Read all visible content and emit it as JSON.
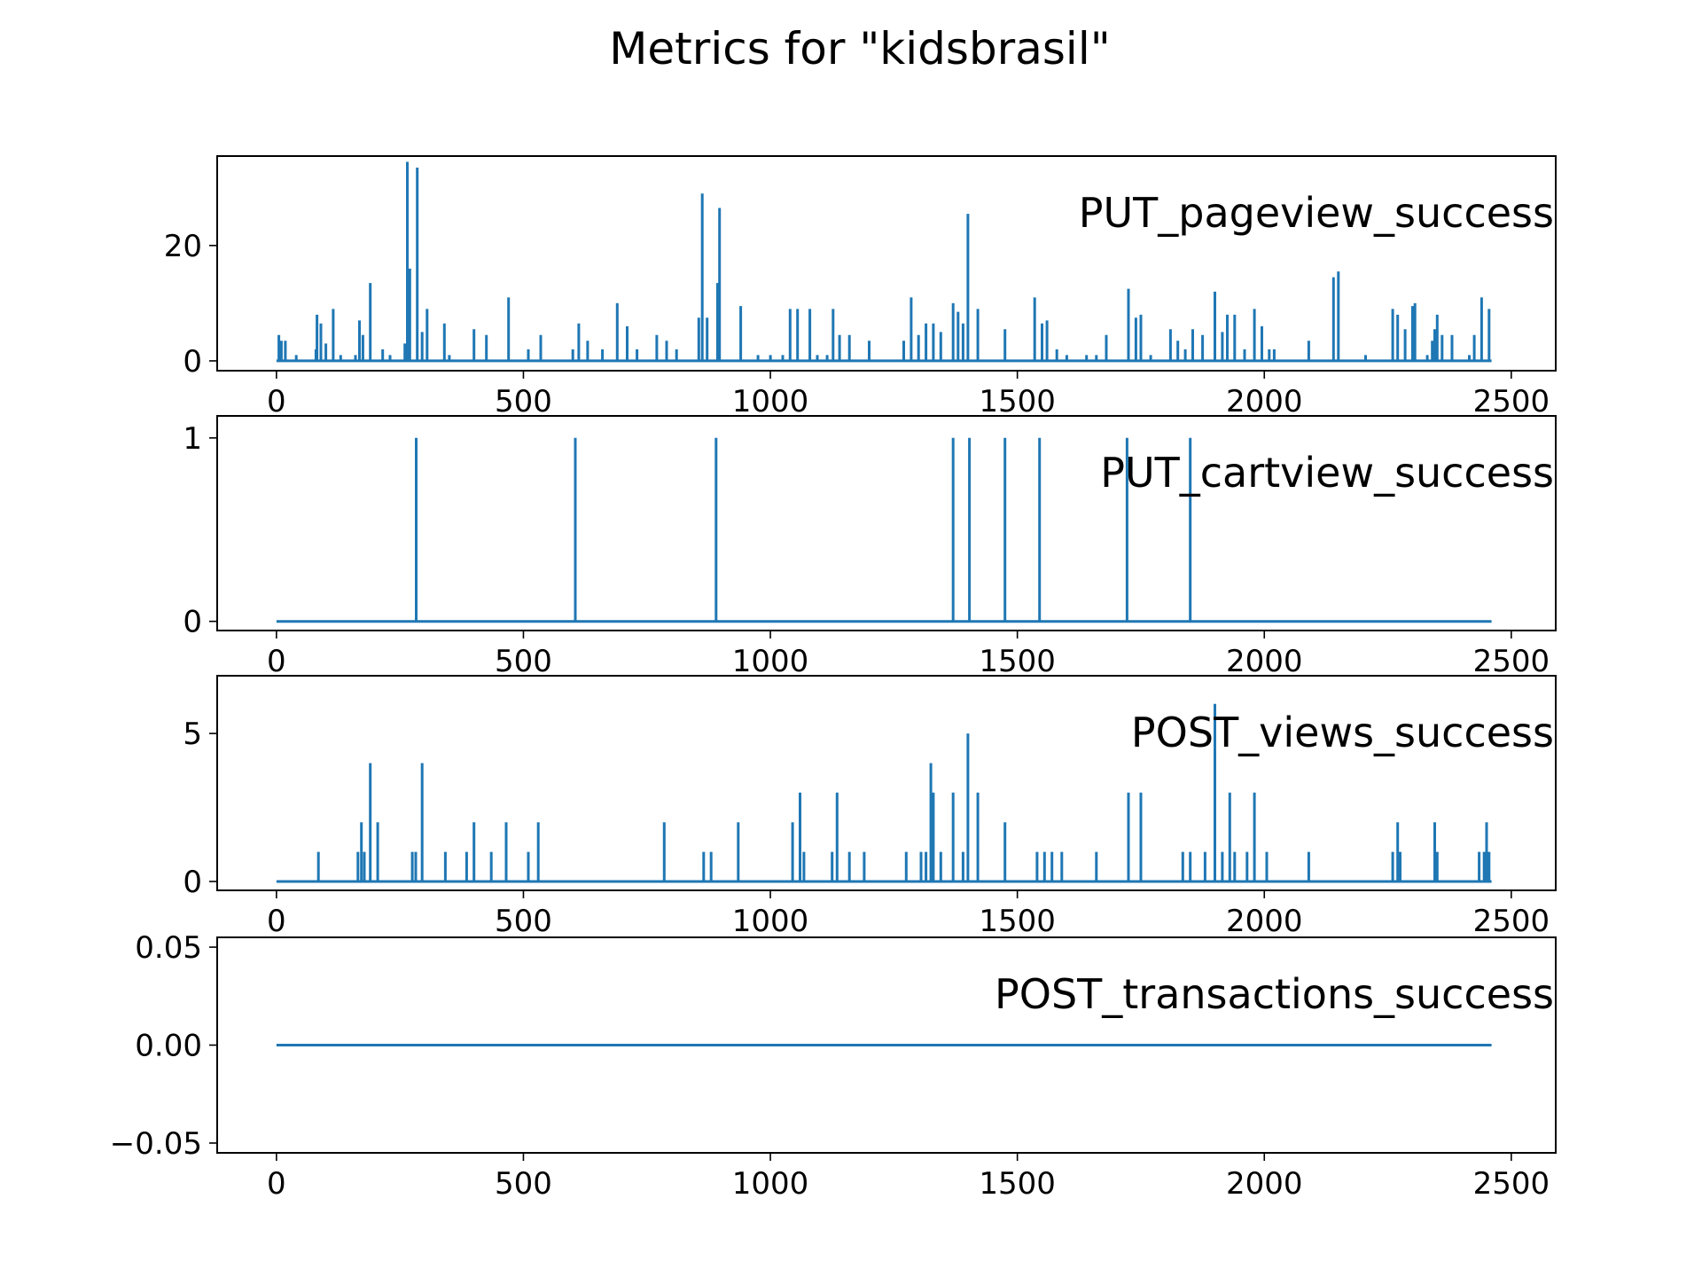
{
  "figure": {
    "title": "Metrics for \"kidsbrasil\"",
    "line_color": "#1f77b4"
  },
  "chart_data": [
    {
      "type": "line",
      "annotation": "PUT_pageview_success",
      "xlim": [
        -120,
        2590
      ],
      "ylim": [
        -1.7,
        35.5
      ],
      "xticks": [
        0,
        500,
        1000,
        1500,
        2000,
        2500
      ],
      "xtick_labels": [
        "0",
        "500",
        "1000",
        "1500",
        "2000",
        "2500"
      ],
      "yticks": [
        0,
        20
      ],
      "ytick_labels": [
        "0",
        "20"
      ],
      "baseline": 0,
      "x_range": [
        0,
        2460
      ],
      "spikes": [
        [
          5,
          4.5
        ],
        [
          10,
          3.5
        ],
        [
          18,
          3.5
        ],
        [
          40,
          1
        ],
        [
          80,
          2
        ],
        [
          82,
          8
        ],
        [
          90,
          6.5
        ],
        [
          100,
          3
        ],
        [
          115,
          9
        ],
        [
          130,
          1
        ],
        [
          160,
          1
        ],
        [
          168,
          7
        ],
        [
          175,
          4.5
        ],
        [
          190,
          13.5
        ],
        [
          215,
          2
        ],
        [
          230,
          1
        ],
        [
          260,
          3
        ],
        [
          265,
          34.5
        ],
        [
          270,
          16
        ],
        [
          285,
          33.5
        ],
        [
          295,
          5
        ],
        [
          305,
          9
        ],
        [
          340,
          6.5
        ],
        [
          350,
          1
        ],
        [
          400,
          5.5
        ],
        [
          425,
          4.5
        ],
        [
          470,
          11
        ],
        [
          510,
          2
        ],
        [
          535,
          4.5
        ],
        [
          600,
          2
        ],
        [
          612,
          6.5
        ],
        [
          630,
          3.5
        ],
        [
          660,
          2
        ],
        [
          690,
          10
        ],
        [
          710,
          6
        ],
        [
          730,
          2
        ],
        [
          770,
          4.5
        ],
        [
          790,
          3.5
        ],
        [
          810,
          2
        ],
        [
          855,
          7.5
        ],
        [
          862,
          29
        ],
        [
          872,
          7.5
        ],
        [
          893,
          13.5
        ],
        [
          897,
          26.5
        ],
        [
          940,
          9.5
        ],
        [
          975,
          1
        ],
        [
          1000,
          1
        ],
        [
          1025,
          1
        ],
        [
          1040,
          9
        ],
        [
          1055,
          9
        ],
        [
          1080,
          9
        ],
        [
          1095,
          1
        ],
        [
          1115,
          1
        ],
        [
          1127,
          9
        ],
        [
          1140,
          4.5
        ],
        [
          1160,
          4.5
        ],
        [
          1200,
          3.5
        ],
        [
          1270,
          3.5
        ],
        [
          1285,
          11
        ],
        [
          1300,
          4.5
        ],
        [
          1315,
          6.5
        ],
        [
          1330,
          6.5
        ],
        [
          1345,
          5
        ],
        [
          1370,
          10
        ],
        [
          1380,
          8.5
        ],
        [
          1390,
          6.5
        ],
        [
          1400,
          25.5
        ],
        [
          1420,
          9
        ],
        [
          1475,
          5.5
        ],
        [
          1535,
          11
        ],
        [
          1550,
          6.5
        ],
        [
          1560,
          7
        ],
        [
          1580,
          2
        ],
        [
          1600,
          1
        ],
        [
          1640,
          1
        ],
        [
          1660,
          1
        ],
        [
          1680,
          4.5
        ],
        [
          1725,
          12.5
        ],
        [
          1740,
          7.5
        ],
        [
          1750,
          8
        ],
        [
          1770,
          1
        ],
        [
          1810,
          5.5
        ],
        [
          1825,
          3.5
        ],
        [
          1840,
          2
        ],
        [
          1855,
          5.5
        ],
        [
          1875,
          4.5
        ],
        [
          1900,
          12
        ],
        [
          1915,
          5
        ],
        [
          1925,
          8
        ],
        [
          1940,
          8
        ],
        [
          1960,
          2
        ],
        [
          1980,
          9
        ],
        [
          1995,
          6
        ],
        [
          2010,
          2
        ],
        [
          2020,
          2
        ],
        [
          2090,
          3.5
        ],
        [
          2140,
          14.5
        ],
        [
          2150,
          15.5
        ],
        [
          2205,
          1
        ],
        [
          2260,
          9
        ],
        [
          2270,
          8
        ],
        [
          2285,
          5.5
        ],
        [
          2300,
          9.5
        ],
        [
          2305,
          10
        ],
        [
          2330,
          1
        ],
        [
          2340,
          3.5
        ],
        [
          2345,
          5.5
        ],
        [
          2350,
          8
        ],
        [
          2360,
          4.5
        ],
        [
          2380,
          4.5
        ],
        [
          2415,
          1
        ],
        [
          2425,
          4.5
        ],
        [
          2440,
          11
        ],
        [
          2455,
          9
        ]
      ]
    },
    {
      "type": "line",
      "annotation": "PUT_cartview_success",
      "xlim": [
        -120,
        2590
      ],
      "ylim": [
        -0.05,
        1.12
      ],
      "xticks": [
        0,
        500,
        1000,
        1500,
        2000,
        2500
      ],
      "xtick_labels": [
        "0",
        "500",
        "1000",
        "1500",
        "2000",
        "2500"
      ],
      "yticks": [
        0,
        1
      ],
      "ytick_labels": [
        "0",
        "1"
      ],
      "baseline": 0,
      "x_range": [
        0,
        2460
      ],
      "spikes": [
        [
          283,
          1
        ],
        [
          605,
          1
        ],
        [
          890,
          1
        ],
        [
          1370,
          1
        ],
        [
          1403,
          1
        ],
        [
          1475,
          1
        ],
        [
          1545,
          1
        ],
        [
          1722,
          1
        ],
        [
          1850,
          1
        ]
      ]
    },
    {
      "type": "line",
      "annotation": "POST_views_success",
      "xlim": [
        -120,
        2590
      ],
      "ylim": [
        -0.3,
        6.95
      ],
      "xticks": [
        0,
        500,
        1000,
        1500,
        2000,
        2500
      ],
      "xtick_labels": [
        "0",
        "500",
        "1000",
        "1500",
        "2000",
        "2500"
      ],
      "yticks": [
        0,
        5
      ],
      "ytick_labels": [
        "0",
        "5"
      ],
      "baseline": 0,
      "x_range": [
        0,
        2460
      ],
      "spikes": [
        [
          85,
          1
        ],
        [
          165,
          1
        ],
        [
          172,
          2
        ],
        [
          178,
          1
        ],
        [
          190,
          4
        ],
        [
          205,
          2
        ],
        [
          275,
          1
        ],
        [
          282,
          1
        ],
        [
          295,
          4
        ],
        [
          342,
          1
        ],
        [
          385,
          1
        ],
        [
          400,
          2
        ],
        [
          435,
          1
        ],
        [
          465,
          2
        ],
        [
          510,
          1
        ],
        [
          530,
          2
        ],
        [
          785,
          2
        ],
        [
          865,
          1
        ],
        [
          880,
          1
        ],
        [
          935,
          2
        ],
        [
          1045,
          2
        ],
        [
          1060,
          3
        ],
        [
          1068,
          1
        ],
        [
          1125,
          1
        ],
        [
          1135,
          3
        ],
        [
          1160,
          1
        ],
        [
          1190,
          1
        ],
        [
          1275,
          1
        ],
        [
          1305,
          1
        ],
        [
          1315,
          1
        ],
        [
          1325,
          4
        ],
        [
          1330,
          3
        ],
        [
          1345,
          1
        ],
        [
          1370,
          3
        ],
        [
          1390,
          1
        ],
        [
          1400,
          5
        ],
        [
          1420,
          3
        ],
        [
          1475,
          2
        ],
        [
          1540,
          1
        ],
        [
          1555,
          1
        ],
        [
          1570,
          1
        ],
        [
          1590,
          1
        ],
        [
          1660,
          1
        ],
        [
          1725,
          3
        ],
        [
          1750,
          3
        ],
        [
          1835,
          1
        ],
        [
          1850,
          1
        ],
        [
          1880,
          1
        ],
        [
          1900,
          6
        ],
        [
          1915,
          1
        ],
        [
          1930,
          3
        ],
        [
          1940,
          1
        ],
        [
          1965,
          1
        ],
        [
          1980,
          3
        ],
        [
          2005,
          1
        ],
        [
          2090,
          1
        ],
        [
          2260,
          1
        ],
        [
          2270,
          2
        ],
        [
          2275,
          1
        ],
        [
          2345,
          2
        ],
        [
          2350,
          1
        ],
        [
          2435,
          1
        ],
        [
          2445,
          1
        ],
        [
          2450,
          2
        ],
        [
          2455,
          1
        ]
      ]
    },
    {
      "type": "line",
      "annotation": "POST_transactions_success",
      "xlim": [
        -120,
        2590
      ],
      "ylim": [
        -0.055,
        0.055
      ],
      "xticks": [
        0,
        500,
        1000,
        1500,
        2000,
        2500
      ],
      "xtick_labels": [
        "0",
        "500",
        "1000",
        "1500",
        "2000",
        "2500"
      ],
      "yticks": [
        0.05,
        0,
        -0.05
      ],
      "ytick_labels": [
        "0.05",
        "0.00",
        "−0.05"
      ],
      "baseline": 0,
      "x_range": [
        0,
        2460
      ],
      "spikes": []
    }
  ]
}
